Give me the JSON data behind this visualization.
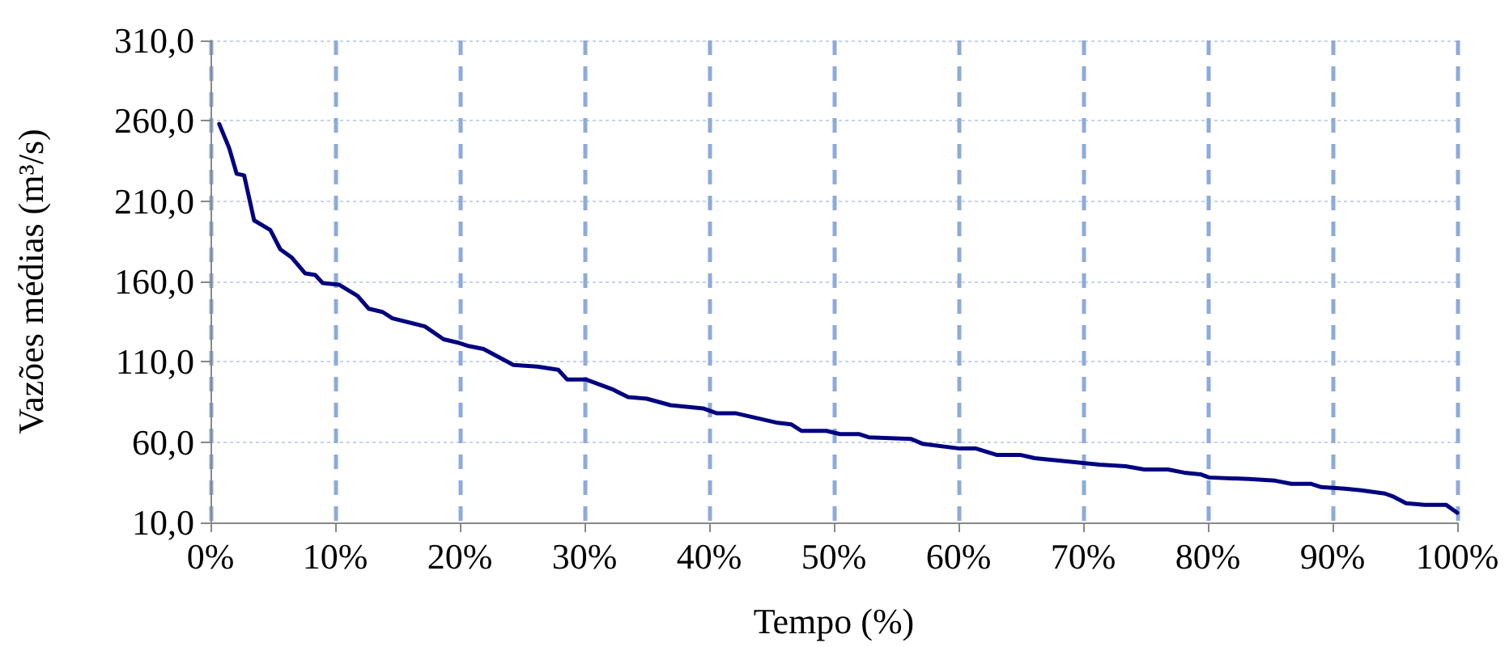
{
  "chart_data": {
    "type": "line",
    "xlabel": "Tempo (%)",
    "ylabel": "Vazões médias (m³/s)",
    "xlim": [
      0,
      100
    ],
    "xticks": [
      {
        "value": 0,
        "label": "0%"
      },
      {
        "value": 10,
        "label": "10%"
      },
      {
        "value": 20,
        "label": "20%"
      },
      {
        "value": 30,
        "label": "30%"
      },
      {
        "value": 40,
        "label": "40%"
      },
      {
        "value": 50,
        "label": "50%"
      },
      {
        "value": 60,
        "label": "60%"
      },
      {
        "value": 70,
        "label": "70%"
      },
      {
        "value": 80,
        "label": "80%"
      },
      {
        "value": 90,
        "label": "90%"
      },
      {
        "value": 100,
        "label": "100%"
      }
    ],
    "ylim": [
      10,
      310
    ],
    "yticks": [
      {
        "value": 10,
        "label": "10,0"
      },
      {
        "value": 60,
        "label": "60,0"
      },
      {
        "value": 110,
        "label": "110,0"
      },
      {
        "value": 160,
        "label": "160,0"
      },
      {
        "value": 210,
        "label": "210,0"
      },
      {
        "value": 260,
        "label": "260,0"
      },
      {
        "value": 310,
        "label": "310,0"
      }
    ],
    "grid": true,
    "marker": "none",
    "line_style": "solid",
    "series": [
      {
        "color": "#000080",
        "x": [
          0.7,
          1.5,
          2.1,
          2.7,
          3.5,
          4.8,
          5.6,
          6.5,
          7.6,
          8.4,
          9.0,
          10.3,
          11.8,
          12.7,
          13.8,
          14.6,
          17.2,
          18.7,
          19.8,
          20.6,
          21.9,
          24.3,
          26.2,
          27.9,
          28.6,
          30.1,
          32.2,
          33.5,
          35.0,
          36.9,
          39.5,
          40.6,
          42.1,
          43.8,
          45.5,
          46.6,
          47.4,
          49.4,
          50.5,
          52.0,
          52.8,
          56.2,
          57.1,
          60.1,
          61.4,
          63.1,
          65.0,
          66.1,
          67.4,
          70.0,
          71.3,
          73.4,
          74.9,
          76.8,
          78.1,
          79.4,
          80.1,
          83.3,
          85.4,
          86.7,
          88.3,
          89.1,
          91.0,
          92.3,
          94.2,
          94.9,
          95.9,
          97.4,
          99.1,
          100
        ],
        "values": [
          258,
          243,
          227,
          226,
          198,
          192,
          180,
          175,
          165,
          164,
          159,
          158,
          151,
          143,
          141,
          137,
          132,
          124,
          122,
          120,
          118,
          108,
          107,
          105,
          99,
          99,
          93,
          88,
          87,
          83,
          81,
          78,
          78,
          75,
          72,
          71,
          67,
          67,
          65,
          65,
          63,
          62,
          59,
          56,
          56,
          52,
          52,
          50,
          49,
          47,
          46,
          45,
          43,
          43,
          41,
          40,
          38,
          37,
          36,
          34,
          34,
          32,
          31,
          30,
          28,
          26,
          22,
          21,
          21,
          16
        ]
      }
    ]
  }
}
